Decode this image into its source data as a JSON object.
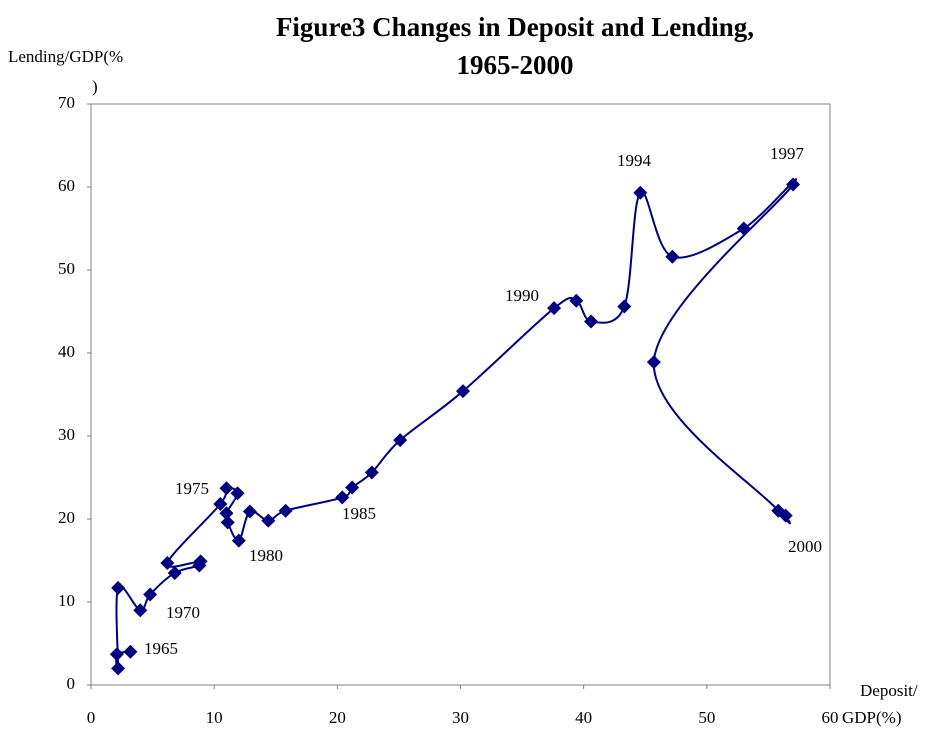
{
  "chart_data": {
    "type": "scatter",
    "title": [
      "Figure3 Changes in Deposit and Lending,",
      "1965-2000"
    ],
    "xlabel": [
      "Deposit/",
      "GDP(%)"
    ],
    "ylabel": [
      "Lending/GDP(%",
      ")"
    ],
    "series": [
      {
        "color": "#000080",
        "x": [
          3.2,
          2.1,
          2.2,
          2.2,
          4.0,
          4.8,
          6.8,
          8.8,
          8.9,
          6.2,
          10.5,
          11.0,
          11.9,
          11.0,
          11.1,
          12.0,
          12.9,
          14.4,
          15.8,
          20.4,
          21.2,
          22.8,
          25.1,
          30.2,
          37.6,
          39.4,
          40.6,
          43.3,
          44.6,
          47.2,
          53.0,
          57.0,
          45.7,
          55.8,
          56.4
        ],
        "values": [
          4.0,
          3.7,
          2.0,
          11.7,
          9.0,
          10.9,
          13.5,
          14.4,
          14.9,
          14.7,
          21.8,
          23.7,
          23.1,
          20.7,
          19.6,
          17.4,
          20.9,
          19.8,
          21.0,
          22.6,
          23.8,
          25.6,
          29.5,
          35.4,
          45.4,
          46.3,
          43.8,
          45.6,
          59.3,
          51.6,
          55.0,
          60.3,
          38.9,
          21.0,
          20.4
        ]
      }
    ],
    "annotations": [
      "1965",
      "1970",
      "1975",
      "1980",
      "1985",
      "1990",
      "1994",
      "1997",
      "2000"
    ],
    "xlim": [
      0,
      60
    ],
    "xticks": [
      0,
      10,
      20,
      30,
      40,
      50,
      60
    ],
    "ylim": [
      0,
      70
    ],
    "yticks": [
      0,
      10,
      20,
      30,
      40,
      50,
      60,
      70
    ],
    "grid": false
  }
}
